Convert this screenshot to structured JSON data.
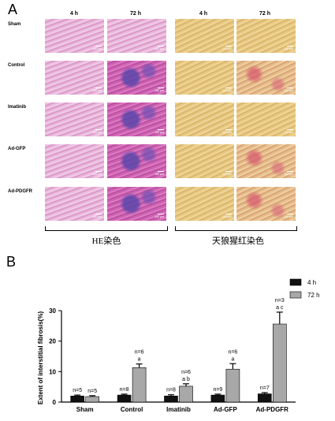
{
  "panel_a": {
    "letter": "A",
    "column_headers": [
      "4 h",
      "72 h",
      "4 h",
      "72 h"
    ],
    "row_labels": [
      "Sham",
      "Control",
      "Imatinib",
      "Ad-GFP",
      "Ad-PDGFR"
    ],
    "scale_bar": "100 µm",
    "stain_labels": [
      "HE染色",
      "天狼猩红染色"
    ]
  },
  "panel_b": {
    "letter": "B"
  },
  "chart_data": {
    "type": "bar",
    "categories": [
      "Sham",
      "Control",
      "Imatinib",
      "Ad-GFP",
      "Ad-PDGFR"
    ],
    "series": [
      {
        "name": "4 h",
        "color": "#111111",
        "values": [
          2.0,
          2.3,
          2.0,
          2.3,
          2.7
        ],
        "errors": [
          0.3,
          0.3,
          0.4,
          0.3,
          0.4
        ]
      },
      {
        "name": "72 h",
        "color": "#a8a8a8",
        "values": [
          1.8,
          11.3,
          5.2,
          10.8,
          25.6
        ],
        "errors": [
          0.3,
          1.2,
          0.8,
          1.8,
          3.9
        ]
      }
    ],
    "annotations": {
      "4 h": [
        "n=5",
        "n=8",
        "n=8",
        "n=9",
        "n=7"
      ],
      "72 h": [
        "n=5",
        "n=6\na",
        "n=6\na b",
        "n=6\na",
        "n=3\na c"
      ]
    },
    "ylabel": "Extent of interstitial fibrosis(%)",
    "ylim": [
      0,
      30
    ],
    "yticks": [
      0,
      10,
      20,
      30
    ],
    "legend_position": "top-right",
    "grid": false
  }
}
